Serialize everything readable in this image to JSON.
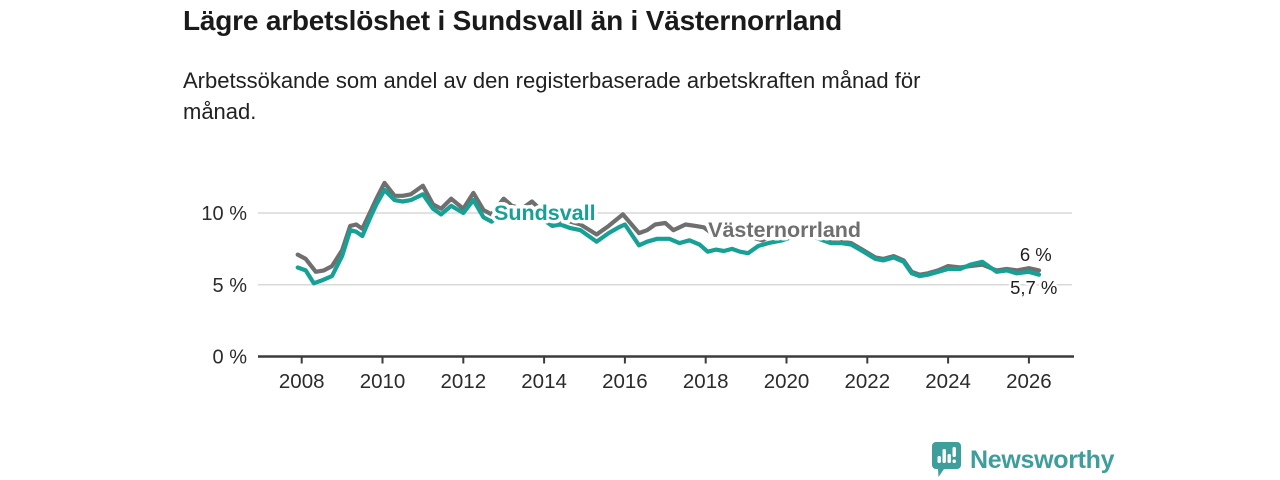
{
  "header": {
    "title": "Lägre arbetslöshet i Sundsvall än i Västernorrland",
    "subtitle_line1": "Arbetssökande som andel av den registerbaserade arbetskraften månad för",
    "subtitle_line2": "månad."
  },
  "footer": {
    "brand": "Newsworthy"
  },
  "colors": {
    "sundsvall": "#16a096",
    "vasternorrland": "#6f6f6f",
    "axis": "#3b3b3b",
    "grid": "#d9d9d9",
    "text": "#2b2b2b",
    "logo": "#3d9e9b",
    "background": "#ffffff"
  },
  "chart_data": {
    "type": "line",
    "title": "Lägre arbetslöshet i Sundsvall än i Västernorrland",
    "xlabel": "",
    "ylabel": "Arbetssökande som andel av den registerbaserade arbetskraften",
    "x_unit": "year (monthly data)",
    "y_unit": "%",
    "xlim": [
      2007.9,
      2026.4
    ],
    "ylim": [
      0,
      13
    ],
    "grid": "horizontal",
    "legend_position": "inline-labels",
    "x_axis": {
      "ticks": [
        2008,
        2010,
        2012,
        2014,
        2016,
        2018,
        2020,
        2022,
        2024,
        2026
      ]
    },
    "y_axis": {
      "ticks": [
        {
          "value": 0,
          "label": "0 %"
        },
        {
          "value": 5,
          "label": "5 %"
        },
        {
          "value": 10,
          "label": "10 %"
        }
      ]
    },
    "series": [
      {
        "name": "Västernorrland",
        "color": "#6f6f6f",
        "label": {
          "year": 2018.06,
          "value": 8.33,
          "anchor": "start"
        },
        "end_label": {
          "text": "6 %",
          "year": 2026.17,
          "value": 6.65
        },
        "points": [
          [
            2007.9,
            7.1
          ],
          [
            2008.1,
            6.8
          ],
          [
            2008.35,
            5.9
          ],
          [
            2008.55,
            6.0
          ],
          [
            2008.75,
            6.3
          ],
          [
            2009.0,
            7.4
          ],
          [
            2009.2,
            9.1
          ],
          [
            2009.35,
            9.2
          ],
          [
            2009.5,
            8.9
          ],
          [
            2009.7,
            10.1
          ],
          [
            2009.85,
            11.0
          ],
          [
            2010.05,
            12.1
          ],
          [
            2010.3,
            11.2
          ],
          [
            2010.5,
            11.2
          ],
          [
            2010.7,
            11.3
          ],
          [
            2011.0,
            11.9
          ],
          [
            2011.25,
            10.6
          ],
          [
            2011.45,
            10.3
          ],
          [
            2011.7,
            11.0
          ],
          [
            2012.0,
            10.3
          ],
          [
            2012.25,
            11.4
          ],
          [
            2012.5,
            10.2
          ],
          [
            2012.7,
            9.9
          ],
          [
            2013.0,
            11.0
          ],
          [
            2013.2,
            10.5
          ],
          [
            2013.45,
            10.3
          ],
          [
            2013.7,
            10.8
          ],
          [
            2014.0,
            10.0
          ],
          [
            2014.2,
            9.4
          ],
          [
            2014.4,
            9.5
          ],
          [
            2014.65,
            9.4
          ],
          [
            2014.9,
            9.2
          ],
          [
            2015.3,
            8.5
          ],
          [
            2015.6,
            9.1
          ],
          [
            2015.95,
            9.9
          ],
          [
            2016.35,
            8.6
          ],
          [
            2016.55,
            8.8
          ],
          [
            2016.75,
            9.2
          ],
          [
            2017.0,
            9.3
          ],
          [
            2017.2,
            8.8
          ],
          [
            2017.5,
            9.2
          ],
          [
            2017.75,
            9.1
          ],
          [
            2017.95,
            9.0
          ],
          [
            2018.1,
            8.7
          ],
          [
            2018.4,
            8.5
          ],
          [
            2018.6,
            8.6
          ],
          [
            2018.85,
            8.25
          ],
          [
            2019.1,
            8.35
          ],
          [
            2019.4,
            8.1
          ],
          [
            2019.6,
            8.35
          ],
          [
            2019.9,
            8.5
          ],
          [
            2020.2,
            8.8
          ],
          [
            2020.5,
            9.0
          ],
          [
            2020.8,
            8.6
          ],
          [
            2021.1,
            8.1
          ],
          [
            2021.35,
            8.0
          ],
          [
            2021.6,
            7.9
          ],
          [
            2021.85,
            7.5
          ],
          [
            2022.2,
            6.9
          ],
          [
            2022.4,
            6.8
          ],
          [
            2022.65,
            7.0
          ],
          [
            2022.9,
            6.7
          ],
          [
            2023.1,
            5.9
          ],
          [
            2023.3,
            5.7
          ],
          [
            2023.5,
            5.8
          ],
          [
            2023.75,
            6.0
          ],
          [
            2024.0,
            6.3
          ],
          [
            2024.3,
            6.2
          ],
          [
            2024.55,
            6.3
          ],
          [
            2024.85,
            6.4
          ],
          [
            2025.2,
            6.0
          ],
          [
            2025.45,
            6.1
          ],
          [
            2025.7,
            6.0
          ],
          [
            2026.0,
            6.15
          ],
          [
            2026.25,
            6.0
          ]
        ]
      },
      {
        "name": "Sundsvall",
        "color": "#16a096",
        "label": {
          "year": 2012.76,
          "value": 9.5,
          "anchor": "start"
        },
        "end_label": {
          "text": "5,7 %",
          "year": 2026.12,
          "value": 4.35
        },
        "points": [
          [
            2007.9,
            6.2
          ],
          [
            2008.1,
            6.0
          ],
          [
            2008.3,
            5.1
          ],
          [
            2008.5,
            5.3
          ],
          [
            2008.75,
            5.6
          ],
          [
            2009.0,
            7.0
          ],
          [
            2009.2,
            8.8
          ],
          [
            2009.35,
            8.7
          ],
          [
            2009.5,
            8.4
          ],
          [
            2009.7,
            9.7
          ],
          [
            2009.85,
            10.6
          ],
          [
            2010.05,
            11.6
          ],
          [
            2010.3,
            10.9
          ],
          [
            2010.5,
            10.8
          ],
          [
            2010.7,
            10.9
          ],
          [
            2011.0,
            11.3
          ],
          [
            2011.25,
            10.3
          ],
          [
            2011.45,
            9.9
          ],
          [
            2011.7,
            10.5
          ],
          [
            2012.0,
            10.0
          ],
          [
            2012.25,
            10.9
          ],
          [
            2012.5,
            9.7
          ],
          [
            2012.7,
            9.4
          ],
          [
            2012.95,
            9.9
          ],
          [
            2013.15,
            10.3
          ],
          [
            2013.45,
            9.9
          ],
          [
            2013.7,
            10.3
          ],
          [
            2014.0,
            9.5
          ],
          [
            2014.2,
            9.1
          ],
          [
            2014.4,
            9.2
          ],
          [
            2014.65,
            8.95
          ],
          [
            2014.9,
            8.8
          ],
          [
            2015.3,
            8.0
          ],
          [
            2015.6,
            8.6
          ],
          [
            2015.85,
            9.0
          ],
          [
            2016.0,
            9.2
          ],
          [
            2016.35,
            7.75
          ],
          [
            2016.55,
            8.0
          ],
          [
            2016.8,
            8.2
          ],
          [
            2017.1,
            8.2
          ],
          [
            2017.35,
            7.9
          ],
          [
            2017.6,
            8.1
          ],
          [
            2017.85,
            7.8
          ],
          [
            2018.05,
            7.3
          ],
          [
            2018.25,
            7.45
          ],
          [
            2018.45,
            7.35
          ],
          [
            2018.65,
            7.5
          ],
          [
            2018.85,
            7.3
          ],
          [
            2019.05,
            7.2
          ],
          [
            2019.3,
            7.7
          ],
          [
            2019.55,
            7.9
          ],
          [
            2019.9,
            8.1
          ],
          [
            2020.2,
            8.4
          ],
          [
            2020.5,
            8.6
          ],
          [
            2020.8,
            8.2
          ],
          [
            2021.1,
            7.9
          ],
          [
            2021.35,
            7.9
          ],
          [
            2021.6,
            7.8
          ],
          [
            2021.85,
            7.4
          ],
          [
            2022.2,
            6.8
          ],
          [
            2022.4,
            6.7
          ],
          [
            2022.65,
            6.9
          ],
          [
            2022.9,
            6.6
          ],
          [
            2023.1,
            5.8
          ],
          [
            2023.3,
            5.6
          ],
          [
            2023.5,
            5.7
          ],
          [
            2023.75,
            5.9
          ],
          [
            2024.0,
            6.1
          ],
          [
            2024.3,
            6.1
          ],
          [
            2024.55,
            6.4
          ],
          [
            2024.85,
            6.6
          ],
          [
            2025.2,
            5.9
          ],
          [
            2025.45,
            6.0
          ],
          [
            2025.7,
            5.8
          ],
          [
            2026.0,
            5.9
          ],
          [
            2026.25,
            5.7
          ]
        ]
      }
    ]
  }
}
